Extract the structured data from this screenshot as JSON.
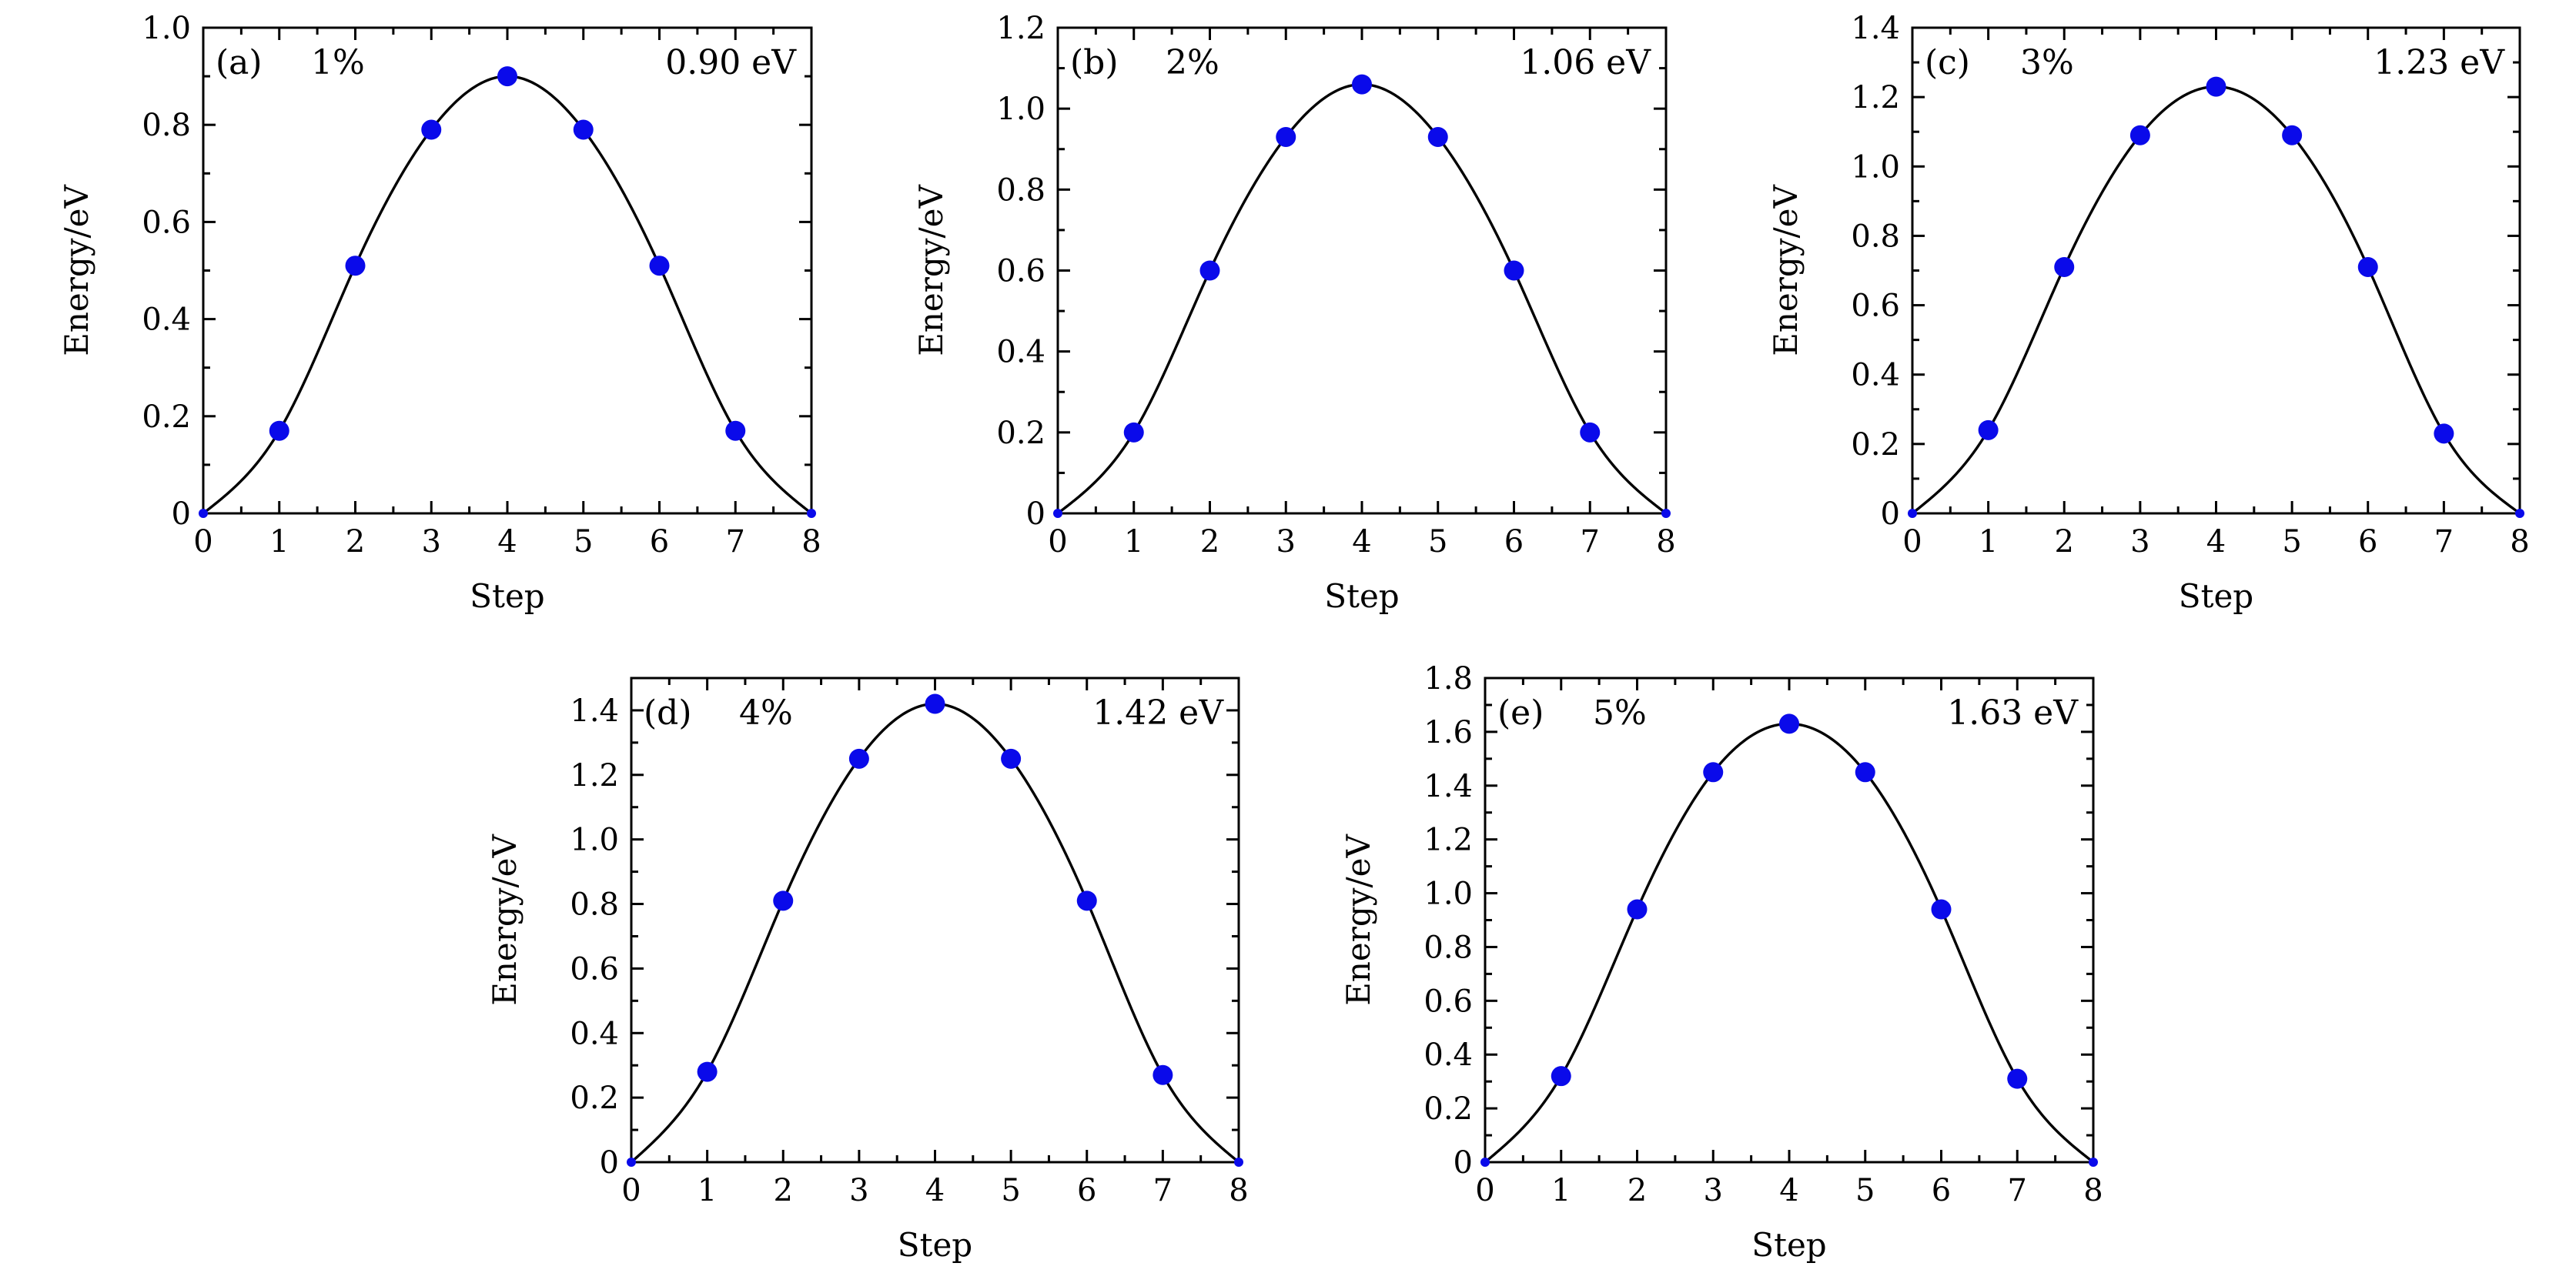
{
  "chart_data": [
    {
      "type": "line",
      "panel_label": "(a)",
      "strain": "1%",
      "barrier": "0.90 eV",
      "xlabel": "Step",
      "ylabel": "Energy/eV",
      "xlim": [
        0,
        8
      ],
      "ylim": [
        0,
        1.0
      ],
      "x_ticks": [
        0,
        1,
        2,
        3,
        4,
        5,
        6,
        7,
        8
      ],
      "x_tick_labels": [
        "0",
        "1",
        "2",
        "3",
        "4",
        "5",
        "6",
        "7",
        "8"
      ],
      "y_ticks": [
        0,
        0.2,
        0.4,
        0.6,
        0.8,
        1.0
      ],
      "y_tick_labels": [
        "0",
        "0.2",
        "0.4",
        "0.6",
        "0.8",
        "1.0"
      ],
      "x": [
        0,
        1,
        2,
        3,
        4,
        5,
        6,
        7,
        8
      ],
      "y": [
        0,
        0.17,
        0.51,
        0.79,
        0.9,
        0.79,
        0.51,
        0.17,
        0
      ],
      "marker_color": "#0a0aea",
      "line_color": "#000000"
    },
    {
      "type": "line",
      "panel_label": "(b)",
      "strain": "2%",
      "barrier": "1.06 eV",
      "xlabel": "Step",
      "ylabel": "Energy/eV",
      "xlim": [
        0,
        8
      ],
      "ylim": [
        0,
        1.2
      ],
      "x_ticks": [
        0,
        1,
        2,
        3,
        4,
        5,
        6,
        7,
        8
      ],
      "x_tick_labels": [
        "0",
        "1",
        "2",
        "3",
        "4",
        "5",
        "6",
        "7",
        "8"
      ],
      "y_ticks": [
        0,
        0.2,
        0.4,
        0.6,
        0.8,
        1.0,
        1.2
      ],
      "y_tick_labels": [
        "0",
        "0.2",
        "0.4",
        "0.6",
        "0.8",
        "1.0",
        "1.2"
      ],
      "x": [
        0,
        1,
        2,
        3,
        4,
        5,
        6,
        7,
        8
      ],
      "y": [
        0,
        0.2,
        0.6,
        0.93,
        1.06,
        0.93,
        0.6,
        0.2,
        0
      ],
      "marker_color": "#0a0aea",
      "line_color": "#000000"
    },
    {
      "type": "line",
      "panel_label": "(c)",
      "strain": "3%",
      "barrier": "1.23 eV",
      "xlabel": "Step",
      "ylabel": "Energy/eV",
      "xlim": [
        0,
        8
      ],
      "ylim": [
        0,
        1.4
      ],
      "x_ticks": [
        0,
        1,
        2,
        3,
        4,
        5,
        6,
        7,
        8
      ],
      "x_tick_labels": [
        "0",
        "1",
        "2",
        "3",
        "4",
        "5",
        "6",
        "7",
        "8"
      ],
      "y_ticks": [
        0,
        0.2,
        0.4,
        0.6,
        0.8,
        1.0,
        1.2,
        1.4
      ],
      "y_tick_labels": [
        "0",
        "0.2",
        "0.4",
        "0.6",
        "0.8",
        "1.0",
        "1.2",
        "1.4"
      ],
      "x": [
        0,
        1,
        2,
        3,
        4,
        5,
        6,
        7,
        8
      ],
      "y": [
        0,
        0.24,
        0.71,
        1.09,
        1.23,
        1.09,
        0.71,
        0.23,
        0
      ],
      "marker_color": "#0a0aea",
      "line_color": "#000000"
    },
    {
      "type": "line",
      "panel_label": "(d)",
      "strain": "4%",
      "barrier": "1.42 eV",
      "xlabel": "Step",
      "ylabel": "Energy/eV",
      "xlim": [
        0,
        8
      ],
      "ylim": [
        0,
        1.5
      ],
      "x_ticks": [
        0,
        1,
        2,
        3,
        4,
        5,
        6,
        7,
        8
      ],
      "x_tick_labels": [
        "0",
        "1",
        "2",
        "3",
        "4",
        "5",
        "6",
        "7",
        "8"
      ],
      "y_ticks": [
        0,
        0.2,
        0.4,
        0.6,
        0.8,
        1.0,
        1.2,
        1.4
      ],
      "y_tick_labels": [
        "0",
        "0.2",
        "0.4",
        "0.6",
        "0.8",
        "1.0",
        "1.2",
        "1.4"
      ],
      "x": [
        0,
        1,
        2,
        3,
        4,
        5,
        6,
        7,
        8
      ],
      "y": [
        0,
        0.28,
        0.81,
        1.25,
        1.42,
        1.25,
        0.81,
        0.27,
        0
      ],
      "marker_color": "#0a0aea",
      "line_color": "#000000"
    },
    {
      "type": "line",
      "panel_label": "(e)",
      "strain": "5%",
      "barrier": "1.63 eV",
      "xlabel": "Step",
      "ylabel": "Energy/eV",
      "xlim": [
        0,
        8
      ],
      "ylim": [
        0,
        1.8
      ],
      "x_ticks": [
        0,
        1,
        2,
        3,
        4,
        5,
        6,
        7,
        8
      ],
      "x_tick_labels": [
        "0",
        "1",
        "2",
        "3",
        "4",
        "5",
        "6",
        "7",
        "8"
      ],
      "y_ticks": [
        0,
        0.2,
        0.4,
        0.6,
        0.8,
        1.0,
        1.2,
        1.4,
        1.6,
        1.8
      ],
      "y_tick_labels": [
        "0",
        "0.2",
        "0.4",
        "0.6",
        "0.8",
        "1.0",
        "1.2",
        "1.4",
        "1.6",
        "1.8"
      ],
      "x": [
        0,
        1,
        2,
        3,
        4,
        5,
        6,
        7,
        8
      ],
      "y": [
        0,
        0.32,
        0.94,
        1.45,
        1.63,
        1.45,
        0.94,
        0.31,
        0
      ],
      "marker_color": "#0a0aea",
      "line_color": "#000000"
    }
  ]
}
